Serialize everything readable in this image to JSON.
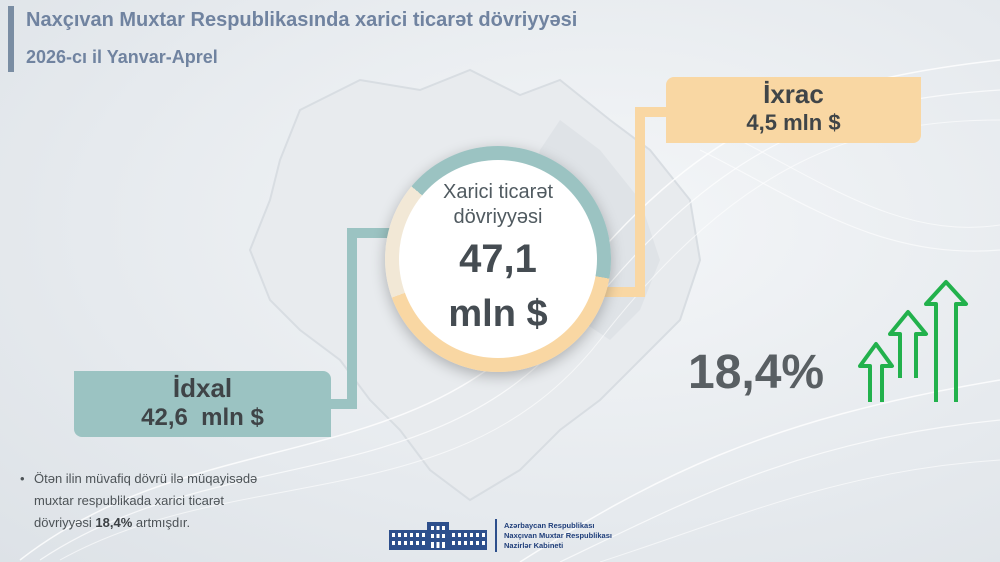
{
  "header": {
    "title": "Naxçıvan Muxtar Respublikasında xarici ticarət dövriyyəsi",
    "subtitle": "2026-cı il Yanvar-Aprel"
  },
  "center": {
    "label_line1": "Xarici ticarət",
    "label_line2": "dövriyyəsi",
    "value": "47,1",
    "unit": "mln $"
  },
  "export": {
    "label": "İxrac",
    "value": "4,5 mln $"
  },
  "import": {
    "label": "İdxal",
    "value": "42,6  mln $"
  },
  "growth": {
    "value": "18,4%",
    "icon": "growth-arrows-icon"
  },
  "note": {
    "bullet": "•",
    "line1": "Ötən ilin müvafiq dövrü ilə müqayisədə",
    "line2": "muxtar respublikada xarici ticarət",
    "line3_prefix": "dövriyyəsi ",
    "line3_bold": "18,4%",
    "line3_suffix": " artmışdır."
  },
  "footer_logo": {
    "line1": "Azərbaycan Respublikası",
    "line2": "Naxçıvan Muxtar Respublikası",
    "line3": "Nazirlər Kabineti"
  },
  "colors": {
    "accent_title": "#7083a0",
    "export": "#f9d7a3",
    "import": "#9bc3c2",
    "arrows": "#22b14c"
  }
}
